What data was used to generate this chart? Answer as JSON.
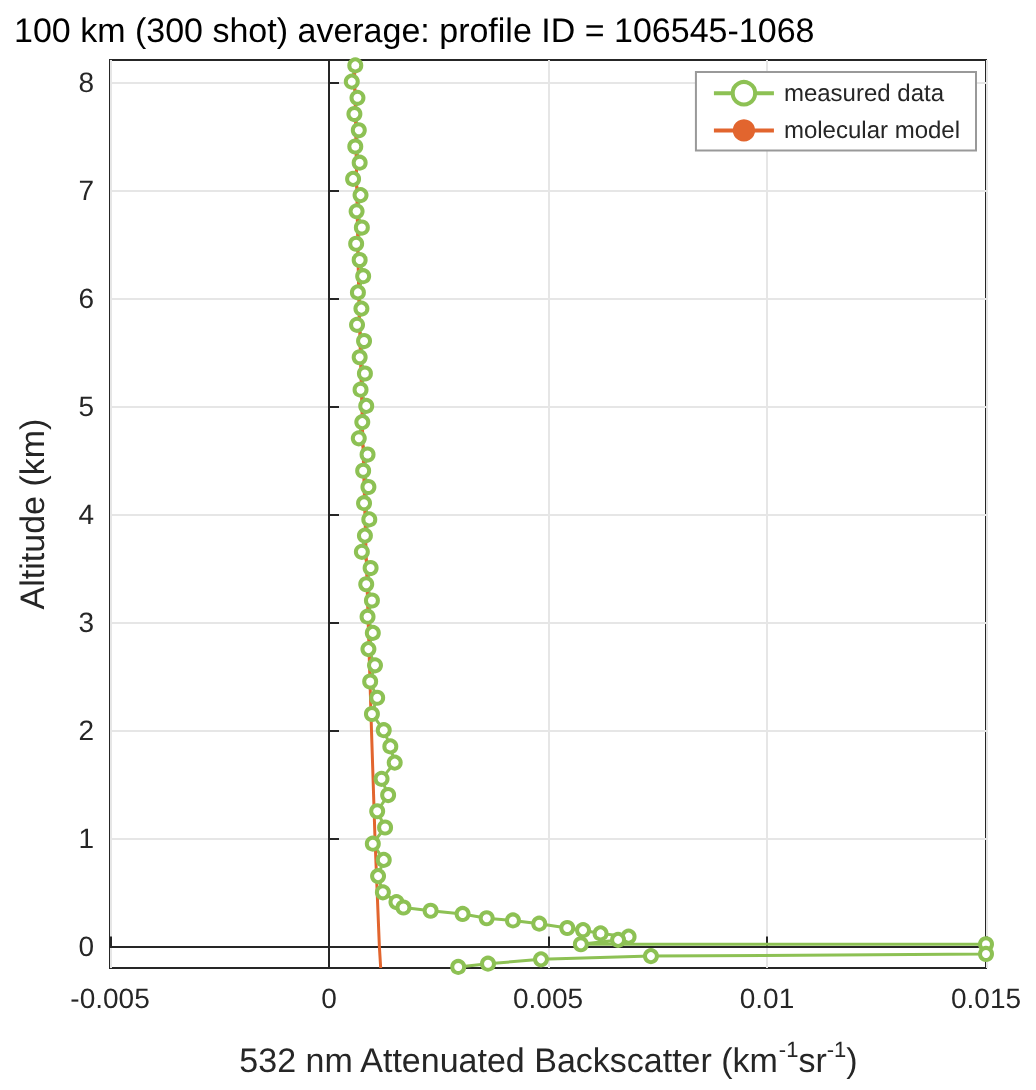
{
  "chart_data": {
    "type": "line",
    "title": "100 km (300 shot) average: profile ID = 106545-1068",
    "xlabel": "532 nm Attenuated Backscatter (km$^{-1}$sr$^{-1}$)",
    "ylabel": "Altitude (km)",
    "xlim": [
      -0.005,
      0.015
    ],
    "xticks": [
      -0.005,
      0,
      0.005,
      0.01,
      0.015
    ],
    "ylim": [
      -0.2,
      8.2
    ],
    "yticks": [
      0,
      1,
      2,
      3,
      4,
      5,
      6,
      7,
      8
    ],
    "grid": true,
    "legend": "top right",
    "series": [
      {
        "name": "measured data",
        "color": "#8dc154",
        "marker": "circle",
        "x": [
          0.0006,
          0.00052,
          0.00065,
          0.00058,
          0.00068,
          0.0006,
          0.0007,
          0.00055,
          0.00072,
          0.00063,
          0.00075,
          0.00062,
          0.0007,
          0.00078,
          0.00066,
          0.00074,
          0.00064,
          0.0008,
          0.0007,
          0.00082,
          0.00072,
          0.00085,
          0.00076,
          0.00068,
          0.00088,
          0.00078,
          0.0009,
          0.0008,
          0.00092,
          0.00082,
          0.00075,
          0.00095,
          0.00085,
          0.00098,
          0.00088,
          0.001,
          0.0009,
          0.00105,
          0.00094,
          0.0011,
          0.00098,
          0.00125,
          0.0014,
          0.0015,
          0.0012,
          0.00135,
          0.0011,
          0.00128,
          0.001,
          0.00125,
          0.00112,
          0.00123,
          0.00154,
          0.0017,
          0.00232,
          0.00305,
          0.0036,
          0.0042,
          0.0048,
          0.00544,
          0.0058,
          0.0062,
          0.00684,
          0.0066,
          0.00575,
          0.015,
          0.015,
          0.00735,
          0.00484,
          0.00363,
          0.00295
        ],
        "values": [
          8.15,
          8.0,
          7.85,
          7.7,
          7.55,
          7.4,
          7.25,
          7.1,
          6.95,
          6.8,
          6.65,
          6.5,
          6.35,
          6.2,
          6.05,
          5.9,
          5.75,
          5.6,
          5.45,
          5.3,
          5.15,
          5.0,
          4.85,
          4.7,
          4.55,
          4.4,
          4.25,
          4.1,
          3.95,
          3.8,
          3.65,
          3.5,
          3.35,
          3.2,
          3.05,
          2.9,
          2.75,
          2.6,
          2.45,
          2.3,
          2.15,
          2.0,
          1.85,
          1.7,
          1.55,
          1.4,
          1.25,
          1.1,
          0.95,
          0.8,
          0.65,
          0.5,
          0.41,
          0.36,
          0.33,
          0.3,
          0.26,
          0.24,
          0.21,
          0.17,
          0.15,
          0.12,
          0.09,
          0.06,
          0.02,
          0.02,
          -0.07,
          -0.09,
          -0.12,
          -0.16,
          -0.19
        ]
      },
      {
        "name": "molecular model",
        "color": "#e2652e",
        "marker": "none",
        "x": [
          0.00058,
          0.00068,
          0.00082,
          0.00097,
          0.00105,
          0.00115,
          0.00118
        ],
        "values": [
          8.2,
          6,
          4,
          2,
          1,
          0,
          -0.2
        ]
      }
    ]
  }
}
